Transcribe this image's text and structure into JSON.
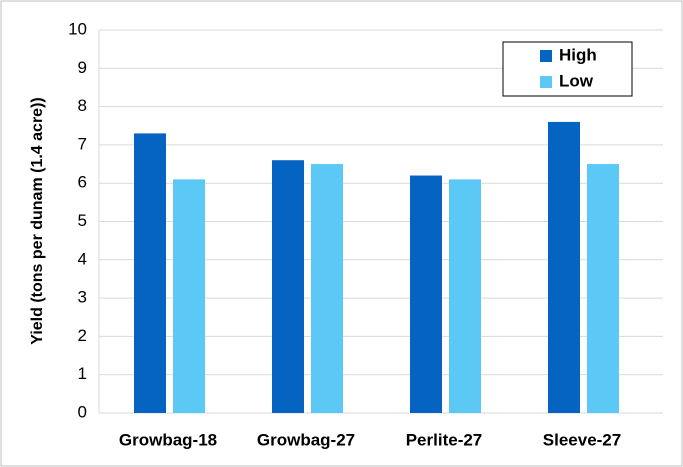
{
  "chart_data": {
    "type": "bar",
    "y_label": "Yield (tons per dunam (1.4 acre))",
    "categories": [
      "Growbag-18",
      "Growbag-27",
      "Perlite-27",
      "Sleeve-27"
    ],
    "series": [
      {
        "name": "High",
        "color": "#0563c1",
        "values": [
          7.3,
          6.6,
          6.2,
          7.6
        ]
      },
      {
        "name": "Low",
        "color": "#5bc8f5",
        "values": [
          6.1,
          6.5,
          6.1,
          6.5
        ]
      }
    ],
    "ylim": [
      0,
      10
    ],
    "yticks": [
      0,
      1,
      2,
      3,
      4,
      5,
      6,
      7,
      8,
      9,
      10
    ],
    "grid": true,
    "legend": "top-right"
  }
}
